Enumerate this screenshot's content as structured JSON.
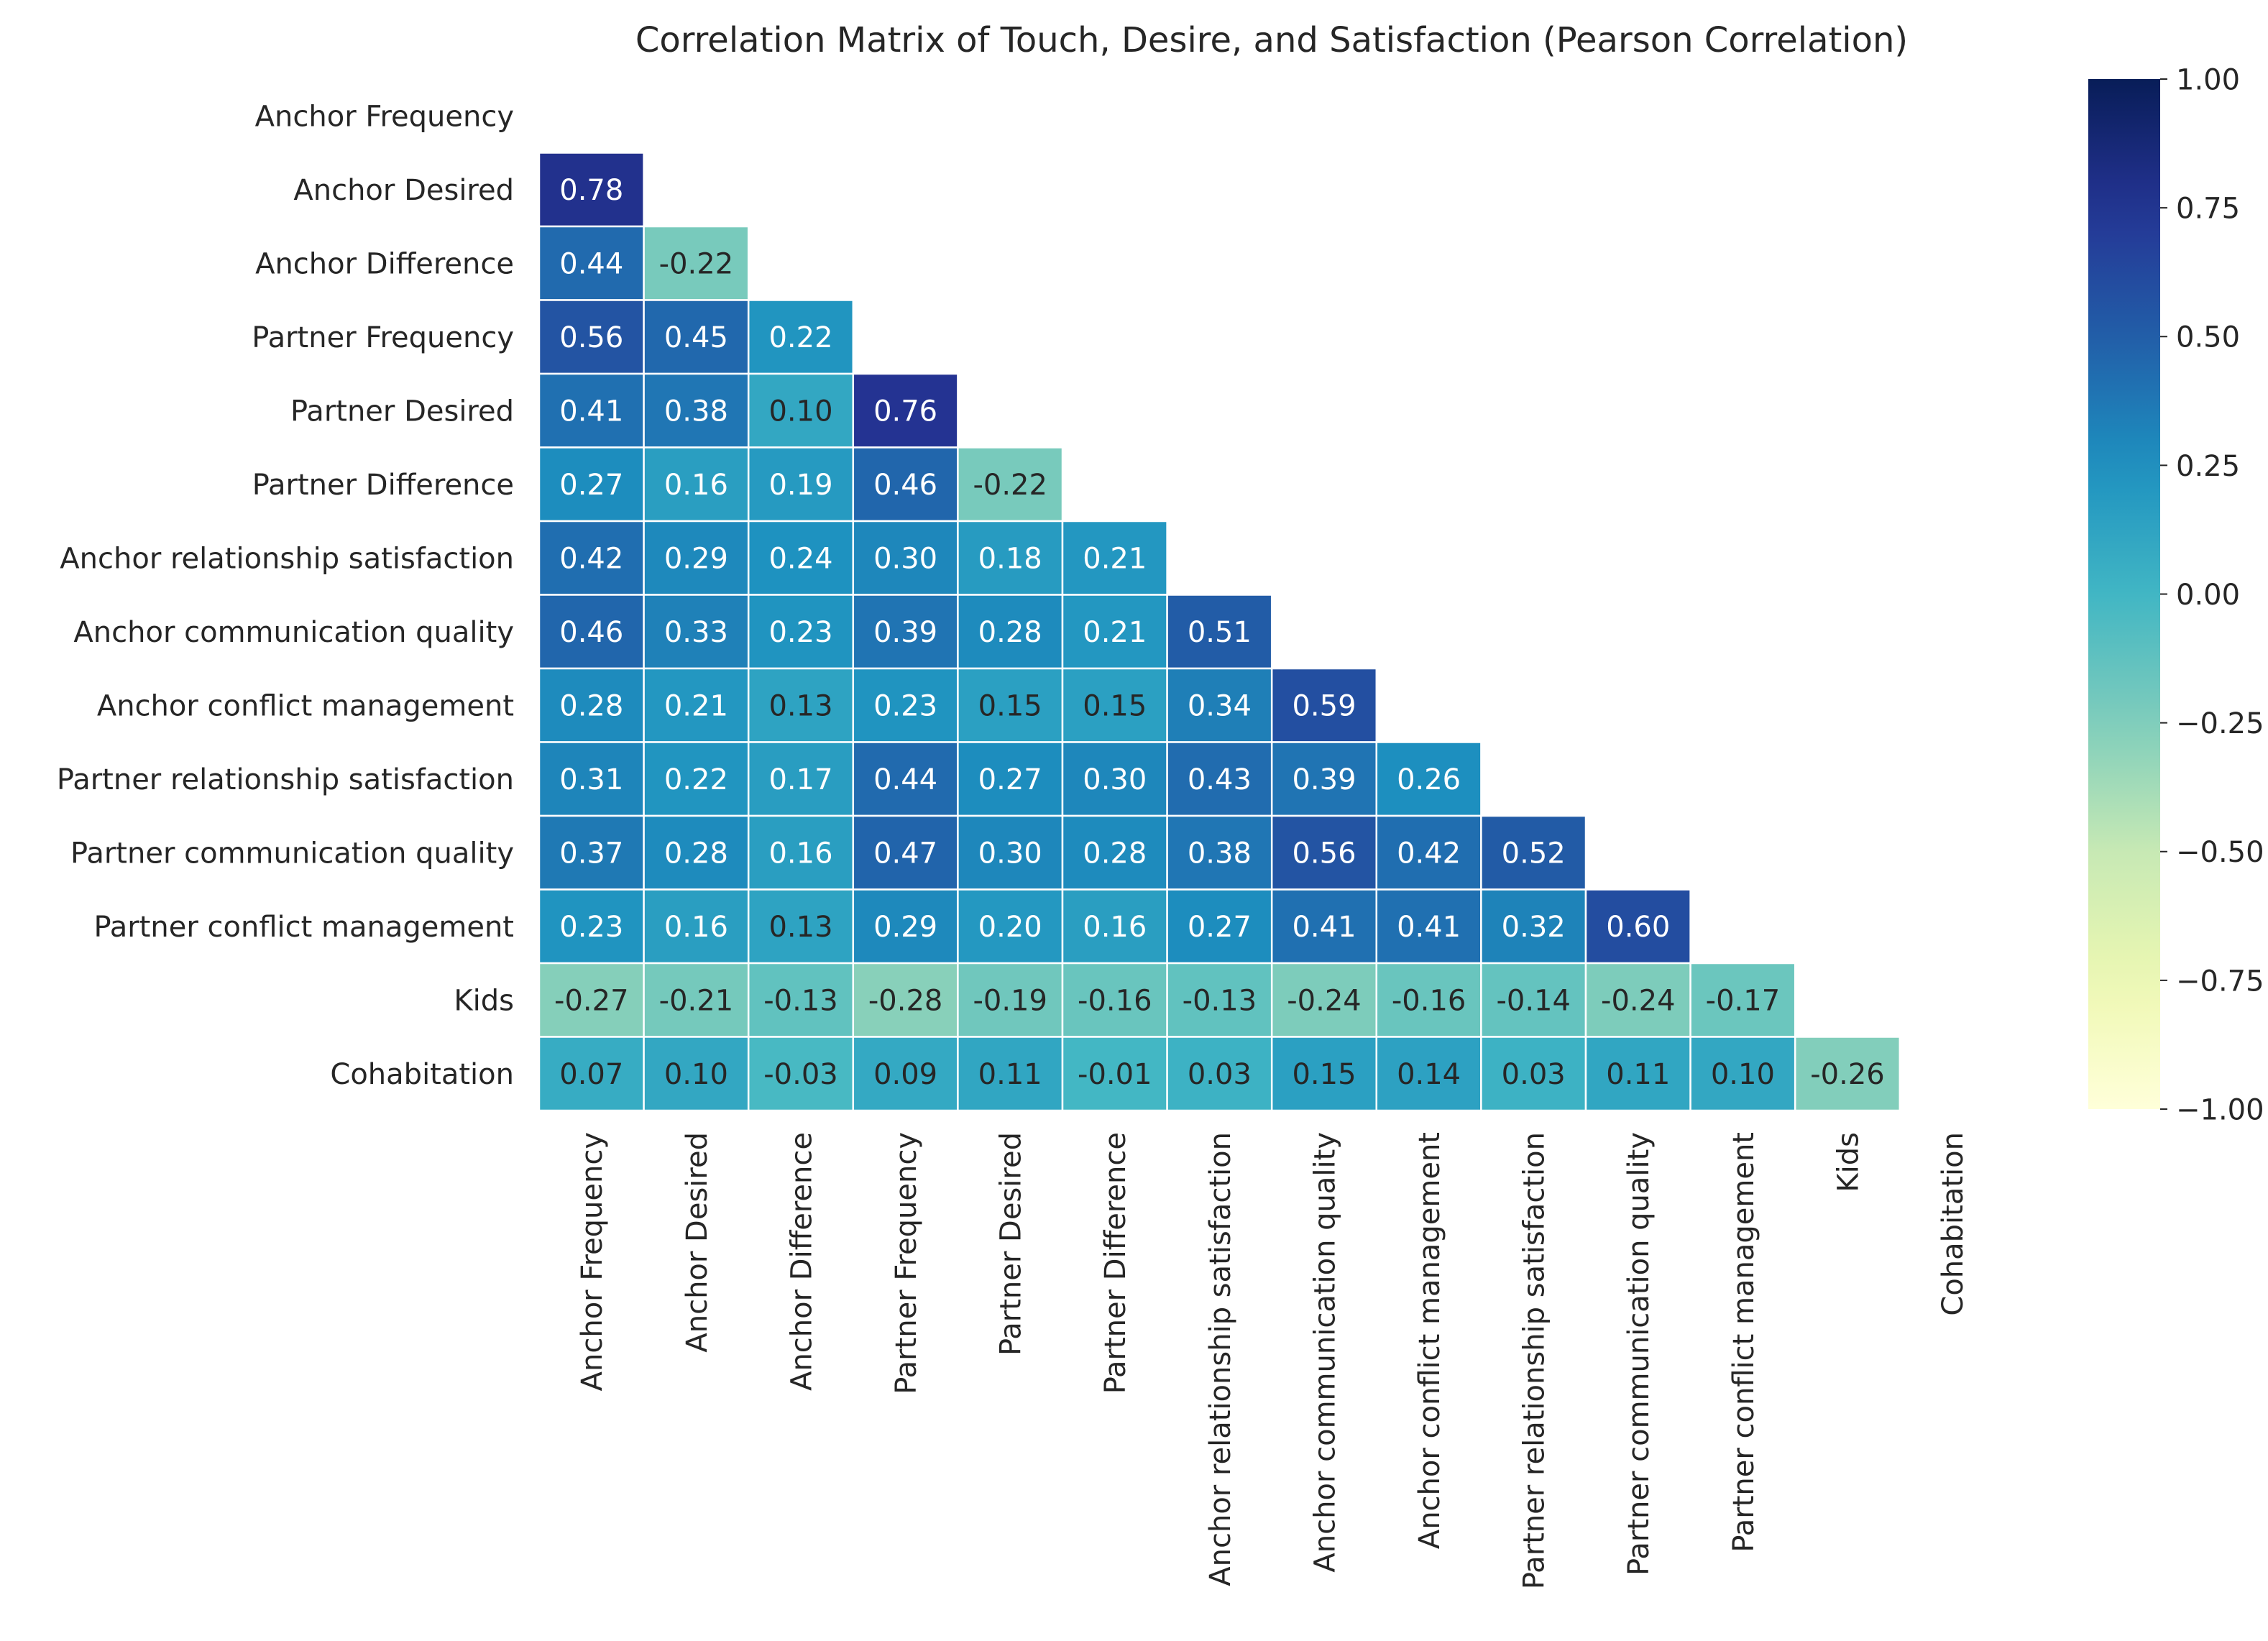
{
  "chart_data": {
    "type": "heatmap",
    "title": "Correlation Matrix of Touch, Desire, and Satisfaction (Pearson Correlation)",
    "labels": [
      "Anchor Frequency",
      "Anchor Desired",
      "Anchor Difference",
      "Partner Frequency",
      "Partner Desired",
      "Partner Difference",
      "Anchor relationship satisfaction",
      "Anchor communication quality",
      "Anchor conflict management",
      "Partner relationship satisfaction",
      "Partner communication quality",
      "Partner conflict management",
      "Kids",
      "Cohabitation"
    ],
    "lower_triangle": [
      [],
      [
        0.78
      ],
      [
        0.44,
        -0.22
      ],
      [
        0.56,
        0.45,
        0.22
      ],
      [
        0.41,
        0.38,
        0.1,
        0.76
      ],
      [
        0.27,
        0.16,
        0.19,
        0.46,
        -0.22
      ],
      [
        0.42,
        0.29,
        0.24,
        0.3,
        0.18,
        0.21
      ],
      [
        0.46,
        0.33,
        0.23,
        0.39,
        0.28,
        0.21,
        0.51
      ],
      [
        0.28,
        0.21,
        0.13,
        0.23,
        0.15,
        0.15,
        0.34,
        0.59
      ],
      [
        0.31,
        0.22,
        0.17,
        0.44,
        0.27,
        0.3,
        0.43,
        0.39,
        0.26
      ],
      [
        0.37,
        0.28,
        0.16,
        0.47,
        0.3,
        0.28,
        0.38,
        0.56,
        0.42,
        0.52
      ],
      [
        0.23,
        0.16,
        0.13,
        0.29,
        0.2,
        0.16,
        0.27,
        0.41,
        0.41,
        0.32,
        0.6
      ],
      [
        -0.27,
        -0.21,
        -0.13,
        -0.28,
        -0.19,
        -0.16,
        -0.13,
        -0.24,
        -0.16,
        -0.14,
        -0.24,
        -0.17
      ],
      [
        0.07,
        0.1,
        -0.03,
        0.09,
        0.11,
        -0.01,
        0.03,
        0.15,
        0.14,
        0.03,
        0.11,
        0.1,
        -0.26
      ]
    ],
    "value_range": [
      -1.0,
      1.0
    ],
    "colormap": "YlGnBu",
    "colorbar_ticks": [
      "1.00",
      "0.75",
      "0.50",
      "0.25",
      "0.00",
      "−0.25",
      "−0.50",
      "−0.75",
      "−1.00"
    ],
    "colorbar_tick_values": [
      1.0,
      0.75,
      0.5,
      0.25,
      0.0,
      -0.25,
      -0.5,
      -0.75,
      -1.0
    ],
    "annotation_format": "2 decimals",
    "cell_border_color": "#ffffff"
  }
}
